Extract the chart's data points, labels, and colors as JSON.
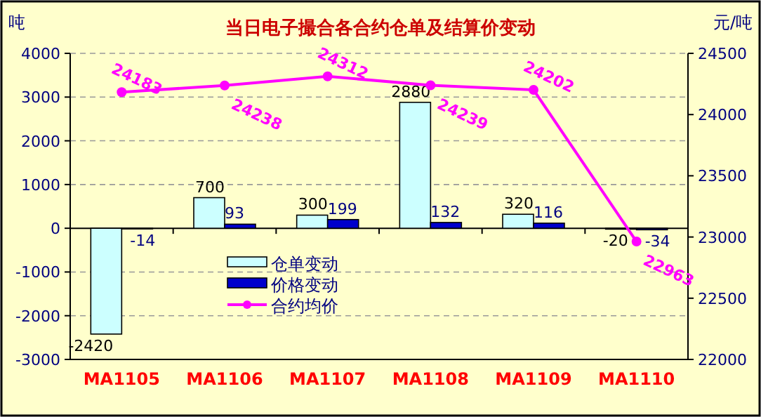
{
  "chart_data": {
    "type": "bar",
    "title": "当日电子撮合各合约仓单及结算价变动",
    "ylabel": "吨",
    "y2label": "元/吨",
    "categories": [
      "MA1105",
      "MA1106",
      "MA1107",
      "MA1108",
      "MA1109",
      "MA1110"
    ],
    "series": [
      {
        "name": "仓单变动",
        "color": "#ccffff",
        "values": [
          -2420,
          700,
          300,
          2880,
          320,
          -20
        ]
      },
      {
        "name": "价格变动",
        "color": "#0000cc",
        "values": [
          -14,
          93,
          199,
          132,
          116,
          -34
        ]
      },
      {
        "name": "合约均价",
        "type": "line",
        "axis": "y2",
        "color": "#ff00ff",
        "marker": "circle",
        "values": [
          24183,
          24238,
          24312,
          24239,
          24202,
          22963
        ]
      }
    ],
    "ylim": [
      -3000,
      4000
    ],
    "yticks": [
      -3000,
      -2000,
      -1000,
      0,
      1000,
      2000,
      3000,
      4000
    ],
    "y2lim": [
      22000,
      24500
    ],
    "y2ticks": [
      22000,
      22500,
      23000,
      23500,
      24000,
      24500
    ],
    "grid": "y",
    "legend": "bottom",
    "data_labels": true
  }
}
